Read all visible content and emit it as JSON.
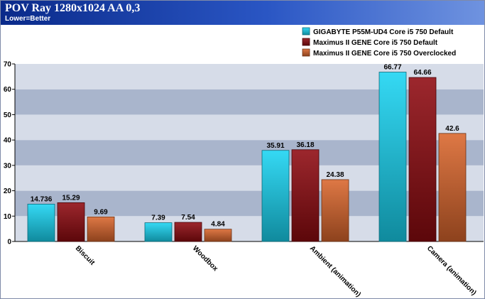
{
  "header": {
    "title": "POV Ray 1280x1024 AA 0,3",
    "subtitle": "Lower=Better"
  },
  "colors": {
    "band_dark": "#a9b5cc",
    "band_light": "#d6dce8"
  },
  "chart_data": {
    "type": "bar",
    "title": "POV Ray 1280x1024 AA 0,3",
    "subtitle": "Lower=Better",
    "xlabel": "",
    "ylabel": "",
    "ylim": [
      0,
      70
    ],
    "yticks": [
      0,
      10,
      20,
      30,
      40,
      50,
      60,
      70
    ],
    "grid": true,
    "legend_position": "top-right",
    "categories": [
      "Biscuit",
      "Woodbox",
      "Ambient (animation)",
      "Camera (animation)"
    ],
    "series": [
      {
        "name": "GIGABYTE P55M-UD4 Core i5 750 Default",
        "color": "#19d4f2",
        "values": [
          14.736,
          7.39,
          35.91,
          66.77
        ],
        "labels": [
          "14.736",
          "7.39",
          "35.91",
          "66.77"
        ]
      },
      {
        "name": "Maximus II GENE Core i5 750 Default",
        "color": "#8e0a10",
        "values": [
          15.29,
          7.54,
          36.18,
          64.66
        ],
        "labels": [
          "15.29",
          "7.54",
          "36.18",
          "64.66"
        ]
      },
      {
        "name": "Maximus II GENE Core i5 750 Overclocked",
        "color": "#d9662c",
        "values": [
          9.69,
          4.84,
          24.38,
          42.6
        ],
        "labels": [
          "9.69",
          "4.84",
          "24.38",
          "42.6"
        ]
      }
    ]
  }
}
